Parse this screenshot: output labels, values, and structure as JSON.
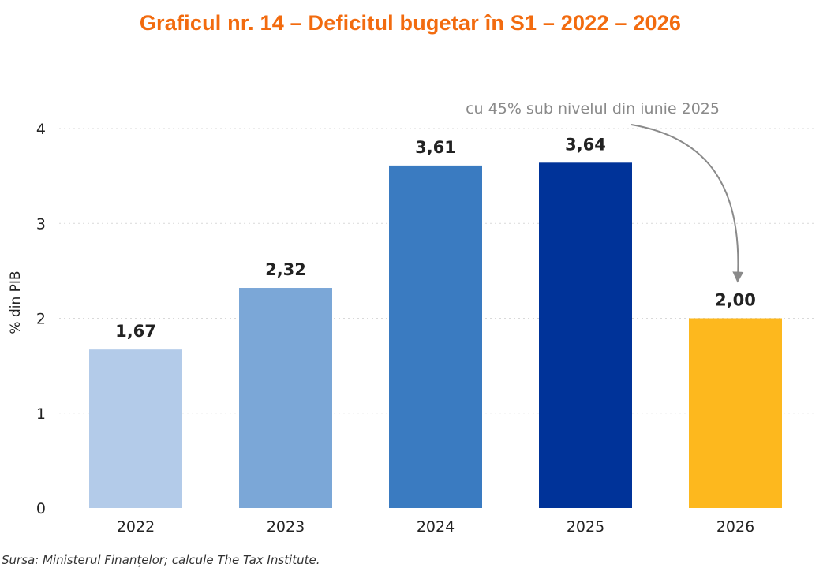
{
  "chart_data": {
    "type": "bar",
    "title": "Graficul nr. 14 – Deficitul bugetar în S1 – 2022 – 2026",
    "ylabel": "% din PIB",
    "xlabel": "",
    "categories": [
      "2022",
      "2023",
      "2024",
      "2025",
      "2026"
    ],
    "values": [
      1.67,
      2.32,
      3.61,
      3.64,
      2.0
    ],
    "value_labels": [
      "1,67",
      "2,32",
      "3,61",
      "3,64",
      "2,00"
    ],
    "bar_colors": [
      "#b3cbe9",
      "#7ba7d7",
      "#3a7bc1",
      "#003399",
      "#fdb81e"
    ],
    "ylim": [
      0,
      4
    ],
    "yticks": [
      "0",
      "1",
      "2",
      "3",
      "4"
    ],
    "grid": true,
    "annotation": {
      "text": "cu 45% sub nivelul din iunie 2025",
      "target_category": "2026"
    }
  },
  "title_color": "#f26b0f",
  "source": "Sursa: Ministerul Finanțelor; calcule The Tax Institute."
}
